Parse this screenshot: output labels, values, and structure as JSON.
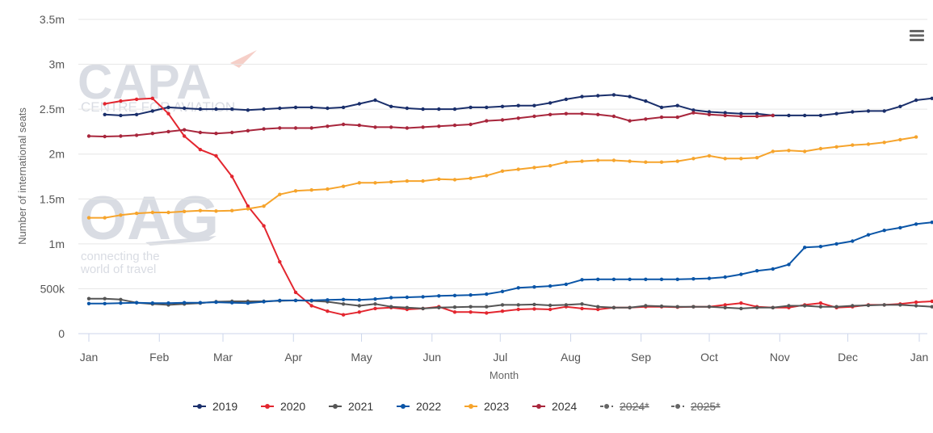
{
  "menu_icon": "hamburger-menu-icon",
  "watermarks": {
    "capa_logo": "CAPA",
    "capa_tagline": "CENTRE FOR AVIATION",
    "oag_logo": "OAG",
    "oag_tagline_1": "connecting the",
    "oag_tagline_2": "world of travel"
  },
  "chart_data": {
    "type": "line",
    "title": "",
    "xlabel": "Month",
    "ylabel": "Number of international seats",
    "x_ticks": [
      "Jan",
      "Feb",
      "Mar",
      "Apr",
      "May",
      "Jun",
      "Jul",
      "Aug",
      "Sep",
      "Oct",
      "Nov",
      "Dec",
      "Jan"
    ],
    "y_ticks": [
      "0",
      "500k",
      "1m",
      "1.5m",
      "2m",
      "2.5m",
      "3m",
      "3.5m"
    ],
    "ylim": [
      0,
      3500000
    ],
    "x_unit": "week of year (1 = first week of January)",
    "grid": "horizontal",
    "legend_position": "bottom",
    "series": [
      {
        "name": "2019",
        "color": "#1a2f6b",
        "start_week": 2,
        "values": [
          2440000,
          2430000,
          2440000,
          2480000,
          2520000,
          2510000,
          2500000,
          2500000,
          2500000,
          2490000,
          2500000,
          2510000,
          2520000,
          2520000,
          2510000,
          2520000,
          2560000,
          2600000,
          2530000,
          2510000,
          2500000,
          2500000,
          2500000,
          2520000,
          2520000,
          2530000,
          2540000,
          2540000,
          2570000,
          2610000,
          2640000,
          2650000,
          2660000,
          2640000,
          2590000,
          2520000,
          2540000,
          2490000,
          2470000,
          2460000,
          2450000,
          2450000,
          2430000,
          2430000,
          2430000,
          2430000,
          2450000,
          2470000,
          2480000,
          2480000,
          2530000,
          2600000,
          2620000
        ]
      },
      {
        "name": "2020",
        "color": "#e3262f",
        "start_week": 2,
        "values": [
          2560000,
          2590000,
          2610000,
          2620000,
          2450000,
          2200000,
          2050000,
          1980000,
          1750000,
          1420000,
          1200000,
          800000,
          460000,
          310000,
          250000,
          210000,
          240000,
          280000,
          290000,
          270000,
          280000,
          300000,
          240000,
          240000,
          230000,
          250000,
          270000,
          275000,
          270000,
          300000,
          280000,
          270000,
          290000,
          290000,
          300000,
          300000,
          295000,
          300000,
          300000,
          320000,
          340000,
          300000,
          290000,
          290000,
          320000,
          340000,
          290000,
          300000,
          320000,
          320000,
          330000,
          350000,
          360000,
          350000
        ]
      },
      {
        "name": "2021",
        "color": "#555555",
        "start_week": 1,
        "values": [
          390000,
          390000,
          380000,
          345000,
          330000,
          320000,
          330000,
          340000,
          355000,
          360000,
          360000,
          360000,
          365000,
          370000,
          365000,
          355000,
          330000,
          310000,
          330000,
          300000,
          290000,
          280000,
          290000,
          295000,
          300000,
          300000,
          320000,
          320000,
          325000,
          315000,
          320000,
          330000,
          300000,
          290000,
          290000,
          310000,
          305000,
          300000,
          300000,
          300000,
          290000,
          280000,
          290000,
          290000,
          310000,
          310000,
          300000,
          300000,
          310000,
          315000,
          320000,
          320000,
          310000,
          300000
        ]
      },
      {
        "name": "2022",
        "color": "#0a55a7",
        "start_week": 1,
        "values": [
          335000,
          335000,
          340000,
          345000,
          340000,
          340000,
          345000,
          345000,
          350000,
          345000,
          340000,
          355000,
          370000,
          370000,
          370000,
          375000,
          380000,
          375000,
          385000,
          400000,
          405000,
          410000,
          420000,
          425000,
          430000,
          440000,
          470000,
          510000,
          520000,
          530000,
          550000,
          600000,
          605000,
          605000,
          605000,
          605000,
          605000,
          605000,
          610000,
          615000,
          630000,
          660000,
          700000,
          720000,
          770000,
          960000,
          970000,
          1000000,
          1030000,
          1100000,
          1150000,
          1180000,
          1220000,
          1240000
        ]
      },
      {
        "name": "2023",
        "color": "#f6a42c",
        "start_week": 1,
        "values": [
          1290000,
          1290000,
          1320000,
          1340000,
          1350000,
          1350000,
          1360000,
          1370000,
          1365000,
          1370000,
          1390000,
          1420000,
          1550000,
          1590000,
          1600000,
          1610000,
          1640000,
          1680000,
          1680000,
          1690000,
          1700000,
          1700000,
          1720000,
          1715000,
          1730000,
          1760000,
          1810000,
          1830000,
          1850000,
          1870000,
          1910000,
          1920000,
          1930000,
          1930000,
          1920000,
          1910000,
          1910000,
          1920000,
          1950000,
          1980000,
          1950000,
          1950000,
          1960000,
          2030000,
          2040000,
          2030000,
          2060000,
          2080000,
          2100000,
          2110000,
          2130000,
          2160000,
          2190000
        ]
      },
      {
        "name": "2024",
        "color": "#a8263c",
        "start_week": 1,
        "values": [
          2200000,
          2195000,
          2200000,
          2210000,
          2230000,
          2250000,
          2270000,
          2240000,
          2230000,
          2240000,
          2260000,
          2280000,
          2290000,
          2290000,
          2290000,
          2310000,
          2330000,
          2320000,
          2300000,
          2300000,
          2290000,
          2300000,
          2310000,
          2320000,
          2330000,
          2370000,
          2380000,
          2400000,
          2420000,
          2440000,
          2450000,
          2450000,
          2440000,
          2420000,
          2370000,
          2390000,
          2410000,
          2410000,
          2460000,
          2440000,
          2430000,
          2420000,
          2420000,
          2430000
        ]
      },
      {
        "name": "2024*",
        "color": "#666666",
        "dashed": true,
        "struck": true,
        "visible": false,
        "values": []
      },
      {
        "name": "2025*",
        "color": "#666666",
        "dashed": true,
        "struck": true,
        "visible": false,
        "values": []
      }
    ]
  }
}
